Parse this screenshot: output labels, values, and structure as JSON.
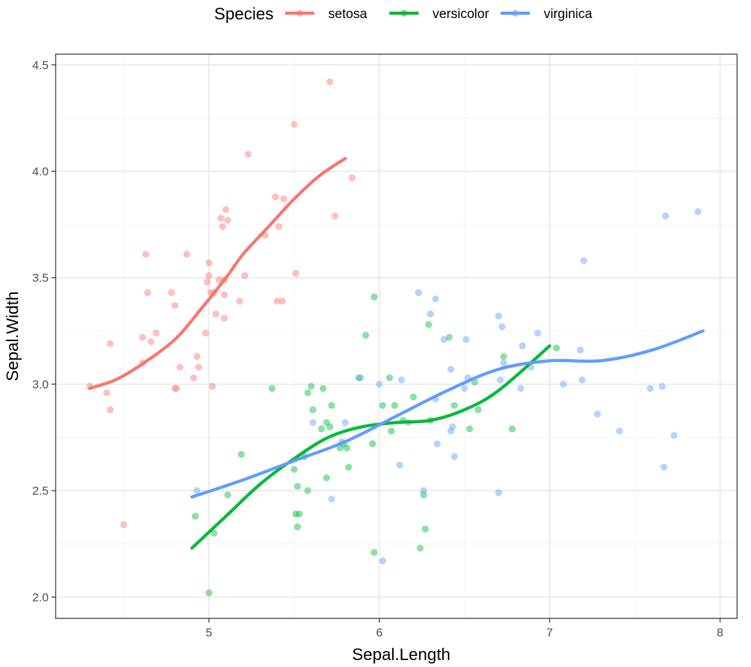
{
  "chart_data": {
    "type": "scatter",
    "title": "",
    "xlabel": "Sepal.Length",
    "ylabel": "Sepal.Width",
    "xlim": [
      4.1,
      8.1
    ],
    "ylim": [
      1.9,
      4.55
    ],
    "x_ticks": [
      5,
      6,
      7,
      8
    ],
    "y_ticks": [
      2.0,
      2.5,
      3.0,
      3.5,
      4.0,
      4.5
    ],
    "x_tick_labels": [
      "5",
      "6",
      "7",
      "8"
    ],
    "y_tick_labels": [
      "2.0",
      "2.5",
      "3.0",
      "3.5",
      "4.0",
      "4.5"
    ],
    "grid": true,
    "legend": {
      "title": "Species",
      "position": "top",
      "entries": [
        "setosa",
        "versicolor",
        "virginica"
      ]
    },
    "series": [
      {
        "name": "setosa",
        "color": "#F8766D",
        "points": [
          [
            4.3,
            2.99
          ],
          [
            4.42,
            3.19
          ],
          [
            4.4,
            2.96
          ],
          [
            4.42,
            2.88
          ],
          [
            4.5,
            2.34
          ],
          [
            4.61,
            3.22
          ],
          [
            4.61,
            3.1
          ],
          [
            4.63,
            3.61
          ],
          [
            4.64,
            3.43
          ],
          [
            4.66,
            3.2
          ],
          [
            4.69,
            3.24
          ],
          [
            4.78,
            3.43
          ],
          [
            4.8,
            3.37
          ],
          [
            4.8,
            2.98
          ],
          [
            4.81,
            2.98
          ],
          [
            4.83,
            3.08
          ],
          [
            4.87,
            3.61
          ],
          [
            4.91,
            3.03
          ],
          [
            4.93,
            3.13
          ],
          [
            4.94,
            3.08
          ],
          [
            4.98,
            3.24
          ],
          [
            4.99,
            3.48
          ],
          [
            5.0,
            3.57
          ],
          [
            5.0,
            3.51
          ],
          [
            5.01,
            3.43
          ],
          [
            5.03,
            3.43
          ],
          [
            5.02,
            2.99
          ],
          [
            5.04,
            3.33
          ],
          [
            5.06,
            3.49
          ],
          [
            5.07,
            3.78
          ],
          [
            5.08,
            3.74
          ],
          [
            5.09,
            3.31
          ],
          [
            5.09,
            3.42
          ],
          [
            5.09,
            3.49
          ],
          [
            5.1,
            3.82
          ],
          [
            5.11,
            3.77
          ],
          [
            5.18,
            3.39
          ],
          [
            5.21,
            3.51
          ],
          [
            5.23,
            4.08
          ],
          [
            5.33,
            3.7
          ],
          [
            5.39,
            3.88
          ],
          [
            5.4,
            3.39
          ],
          [
            5.41,
            3.74
          ],
          [
            5.43,
            3.39
          ],
          [
            5.44,
            3.87
          ],
          [
            5.5,
            4.22
          ],
          [
            5.51,
            3.52
          ],
          [
            5.71,
            4.42
          ],
          [
            5.74,
            3.79
          ],
          [
            5.84,
            3.97
          ]
        ],
        "smooth": [
          [
            4.3,
            2.98
          ],
          [
            4.45,
            3.02
          ],
          [
            4.6,
            3.09
          ],
          [
            4.8,
            3.21
          ],
          [
            4.95,
            3.35
          ],
          [
            5.1,
            3.5
          ],
          [
            5.2,
            3.61
          ],
          [
            5.35,
            3.74
          ],
          [
            5.5,
            3.87
          ],
          [
            5.65,
            3.98
          ],
          [
            5.8,
            4.06
          ]
        ]
      },
      {
        "name": "versicolor",
        "color": "#00BA38",
        "points": [
          [
            4.92,
            2.38
          ],
          [
            5.0,
            2.02
          ],
          [
            5.03,
            2.3
          ],
          [
            5.11,
            2.48
          ],
          [
            5.19,
            2.67
          ],
          [
            5.37,
            2.98
          ],
          [
            5.5,
            2.6
          ],
          [
            5.51,
            2.39
          ],
          [
            5.52,
            2.33
          ],
          [
            5.52,
            2.52
          ],
          [
            5.53,
            2.39
          ],
          [
            5.56,
            2.66
          ],
          [
            5.58,
            2.96
          ],
          [
            5.58,
            2.5
          ],
          [
            5.6,
            2.99
          ],
          [
            5.61,
            2.88
          ],
          [
            5.66,
            2.79
          ],
          [
            5.67,
            2.98
          ],
          [
            5.69,
            2.56
          ],
          [
            5.69,
            2.82
          ],
          [
            5.71,
            2.8
          ],
          [
            5.72,
            2.9
          ],
          [
            5.77,
            2.7
          ],
          [
            5.79,
            2.72
          ],
          [
            5.81,
            2.7
          ],
          [
            5.82,
            2.61
          ],
          [
            5.88,
            3.03
          ],
          [
            5.92,
            3.23
          ],
          [
            5.96,
            2.72
          ],
          [
            5.97,
            3.41
          ],
          [
            5.97,
            2.21
          ],
          [
            6.02,
            2.9
          ],
          [
            6.06,
            3.03
          ],
          [
            6.07,
            2.78
          ],
          [
            6.09,
            2.9
          ],
          [
            6.14,
            2.83
          ],
          [
            6.2,
            2.94
          ],
          [
            6.24,
            2.23
          ],
          [
            6.26,
            2.48
          ],
          [
            6.27,
            2.32
          ],
          [
            6.29,
            3.28
          ],
          [
            6.3,
            2.83
          ],
          [
            6.41,
            3.22
          ],
          [
            6.44,
            2.9
          ],
          [
            6.53,
            2.79
          ],
          [
            6.56,
            3.01
          ],
          [
            6.58,
            2.88
          ],
          [
            6.73,
            3.13
          ],
          [
            6.78,
            2.79
          ],
          [
            7.04,
            3.17
          ]
        ],
        "smooth": [
          [
            4.9,
            2.23
          ],
          [
            5.1,
            2.38
          ],
          [
            5.3,
            2.53
          ],
          [
            5.5,
            2.65
          ],
          [
            5.7,
            2.75
          ],
          [
            5.9,
            2.8
          ],
          [
            6.1,
            2.82
          ],
          [
            6.3,
            2.83
          ],
          [
            6.5,
            2.88
          ],
          [
            6.7,
            2.97
          ],
          [
            7.0,
            3.18
          ]
        ]
      },
      {
        "name": "virginica",
        "color": "#619CFF",
        "points": [
          [
            4.93,
            2.5
          ],
          [
            5.61,
            2.82
          ],
          [
            5.72,
            2.46
          ],
          [
            5.78,
            2.73
          ],
          [
            5.8,
            2.82
          ],
          [
            5.89,
            3.03
          ],
          [
            6.0,
            3.0
          ],
          [
            6.02,
            2.17
          ],
          [
            6.12,
            2.62
          ],
          [
            6.13,
            3.02
          ],
          [
            6.17,
            2.82
          ],
          [
            6.23,
            3.43
          ],
          [
            6.26,
            2.5
          ],
          [
            6.3,
            3.33
          ],
          [
            6.33,
            3.4
          ],
          [
            6.33,
            2.93
          ],
          [
            6.34,
            2.72
          ],
          [
            6.38,
            3.21
          ],
          [
            6.42,
            3.07
          ],
          [
            6.42,
            2.78
          ],
          [
            6.43,
            2.8
          ],
          [
            6.44,
            2.66
          ],
          [
            6.5,
            2.98
          ],
          [
            6.51,
            3.21
          ],
          [
            6.52,
            3.03
          ],
          [
            6.7,
            2.49
          ],
          [
            6.7,
            3.32
          ],
          [
            6.71,
            3.02
          ],
          [
            6.72,
            3.27
          ],
          [
            6.73,
            3.1
          ],
          [
            6.83,
            2.98
          ],
          [
            6.84,
            3.18
          ],
          [
            6.89,
            3.08
          ],
          [
            6.93,
            3.24
          ],
          [
            7.08,
            3.0
          ],
          [
            7.18,
            3.16
          ],
          [
            7.19,
            3.02
          ],
          [
            7.2,
            3.58
          ],
          [
            7.28,
            2.86
          ],
          [
            7.41,
            2.78
          ],
          [
            7.59,
            2.98
          ],
          [
            7.66,
            2.99
          ],
          [
            7.67,
            2.61
          ],
          [
            7.68,
            3.79
          ],
          [
            7.73,
            2.76
          ],
          [
            7.87,
            3.81
          ]
        ],
        "smooth": [
          [
            4.9,
            2.47
          ],
          [
            5.2,
            2.55
          ],
          [
            5.5,
            2.64
          ],
          [
            5.8,
            2.73
          ],
          [
            6.1,
            2.85
          ],
          [
            6.4,
            2.97
          ],
          [
            6.7,
            3.07
          ],
          [
            7.0,
            3.11
          ],
          [
            7.3,
            3.11
          ],
          [
            7.6,
            3.16
          ],
          [
            7.9,
            3.25
          ]
        ]
      }
    ]
  }
}
